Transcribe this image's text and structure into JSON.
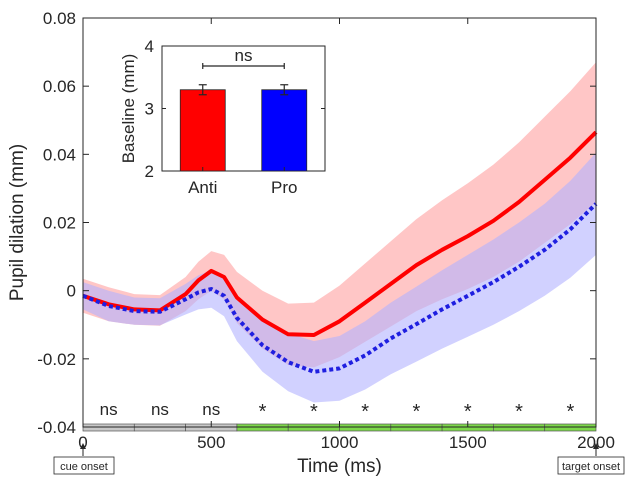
{
  "chart_data": [
    {
      "type": "line",
      "xlabel": "Time (ms)",
      "ylabel": "Pupil dilation (mm)",
      "xlim": [
        0,
        2000
      ],
      "ylim": [
        -0.04,
        0.08
      ],
      "xticks": [
        0,
        500,
        1000,
        1500,
        2000
      ],
      "xtick_labels": [
        "0",
        "500",
        "1000",
        "1500",
        "2000"
      ],
      "yticks": [
        -0.04,
        -0.02,
        0,
        0.02,
        0.04,
        0.06,
        0.08
      ],
      "ytick_labels": [
        "-0.04",
        "-0.02",
        "0",
        "0.02",
        "0.04",
        "0.06",
        "0.08"
      ],
      "grid": false,
      "colors": {
        "anti": "#ff0000",
        "pro": "#1f1fe0",
        "anti_band": "#ffb3b3",
        "pro_band": "#b3b3ff",
        "sig_bar": "#7dd84a",
        "ns_bar": "#c8c8c8"
      },
      "series": [
        {
          "style": "solid",
          "x": [
            0,
            100,
            200,
            300,
            400,
            450,
            500,
            550,
            600,
            700,
            800,
            900,
            1000,
            1100,
            1200,
            1300,
            1400,
            1500,
            1600,
            1700,
            1800,
            1900,
            2000
          ],
          "y": [
            -0.0015,
            -0.004,
            -0.0055,
            -0.0058,
            -0.001,
            0.003,
            0.0058,
            0.004,
            -0.002,
            -0.0085,
            -0.0128,
            -0.013,
            -0.009,
            -0.0035,
            0.002,
            0.0075,
            0.012,
            0.016,
            0.0205,
            0.026,
            0.0325,
            0.039,
            0.0465
          ],
          "band": [
            0.005,
            0.005,
            0.0045,
            0.0045,
            0.005,
            0.0055,
            0.0058,
            0.0065,
            0.0075,
            0.0085,
            0.009,
            0.0095,
            0.0105,
            0.0115,
            0.0125,
            0.0135,
            0.0145,
            0.0155,
            0.0165,
            0.0175,
            0.0185,
            0.0195,
            0.0205
          ]
        },
        {
          "style": "dotted",
          "x": [
            0,
            100,
            200,
            300,
            400,
            450,
            500,
            550,
            600,
            700,
            800,
            900,
            1000,
            1100,
            1200,
            1300,
            1400,
            1500,
            1600,
            1700,
            1800,
            1900,
            2000
          ],
          "y": [
            -0.0015,
            -0.0045,
            -0.006,
            -0.0062,
            -0.0025,
            -0.0005,
            0.0005,
            -0.0015,
            -0.008,
            -0.016,
            -0.021,
            -0.0238,
            -0.0228,
            -0.019,
            -0.014,
            -0.0098,
            -0.0055,
            -0.0015,
            0.0025,
            0.007,
            0.012,
            0.018,
            0.0255
          ],
          "band": [
            0.004,
            0.0045,
            0.004,
            0.004,
            0.0045,
            0.005,
            0.0055,
            0.006,
            0.0068,
            0.0078,
            0.0085,
            0.009,
            0.0095,
            0.01,
            0.0105,
            0.011,
            0.0115,
            0.012,
            0.0125,
            0.013,
            0.0135,
            0.0142,
            0.015
          ]
        }
      ],
      "significance": {
        "bins": [
          {
            "start": 0,
            "end": 200,
            "label": "ns",
            "significant": false
          },
          {
            "start": 200,
            "end": 400,
            "label": "ns",
            "significant": false
          },
          {
            "start": 400,
            "end": 600,
            "label": "ns",
            "significant": false
          },
          {
            "start": 600,
            "end": 800,
            "label": "*",
            "significant": true
          },
          {
            "start": 800,
            "end": 1000,
            "label": "*",
            "significant": true
          },
          {
            "start": 1000,
            "end": 1200,
            "label": "*",
            "significant": true
          },
          {
            "start": 1200,
            "end": 1400,
            "label": "*",
            "significant": true
          },
          {
            "start": 1400,
            "end": 1600,
            "label": "*",
            "significant": true
          },
          {
            "start": 1600,
            "end": 1800,
            "label": "*",
            "significant": true
          },
          {
            "start": 1800,
            "end": 2000,
            "label": "*",
            "significant": true
          }
        ]
      },
      "annotations": [
        {
          "text": "cue onset",
          "x": 0
        },
        {
          "text": "target onset",
          "x": 2000
        }
      ]
    },
    {
      "type": "bar",
      "categories": [
        "Anti",
        "Pro"
      ],
      "values": [
        3.3,
        3.3
      ],
      "errors": [
        0.08,
        0.08
      ],
      "colors": [
        "#ff0000",
        "#0000ff"
      ],
      "ylabel": "Baseline (mm)",
      "ylim": [
        2,
        4
      ],
      "yticks": [
        2,
        3,
        4
      ],
      "ytick_labels": [
        "2",
        "3",
        "4"
      ],
      "comparison": {
        "between": [
          "Anti",
          "Pro"
        ],
        "label": "ns"
      }
    }
  ]
}
